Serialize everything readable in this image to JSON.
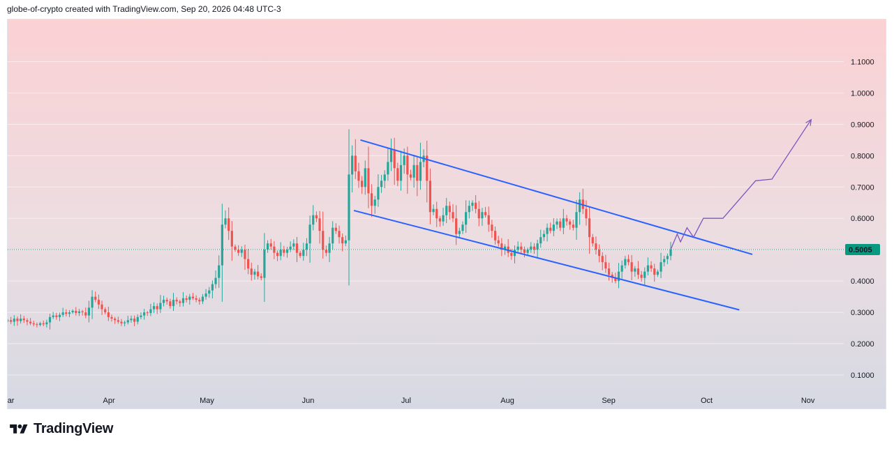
{
  "header": {
    "caption": "globe-of-crypto created with TradingView.com, Sep 20, 2026 04:48 UTC-3"
  },
  "footer": {
    "brand": "TradingView",
    "logo_icon": "tradingview-logo-icon"
  },
  "colors": {
    "up": "#26a69a",
    "down": "#ef5350",
    "channel": "#2962ff",
    "projection": "#7e57c2",
    "last_price_badge": "#089981"
  },
  "chart_data": {
    "type": "candlestick",
    "y_axis": {
      "ticks": [
        "0.1000",
        "0.2000",
        "0.3000",
        "0.4000",
        "0.5000",
        "0.6000",
        "0.7000",
        "0.8000",
        "0.9000",
        "1.0000",
        "1.1000"
      ],
      "range": [
        0.06,
        1.19
      ]
    },
    "x_axis": {
      "ticks": [
        "Mar",
        "Apr",
        "May",
        "Jun",
        "Jul",
        "Aug",
        "Sep",
        "Oct",
        "Nov"
      ]
    },
    "last_price": "0.5005",
    "closes": [
      0.275,
      0.27,
      0.28,
      0.272,
      0.28,
      0.275,
      0.27,
      0.265,
      0.262,
      0.26,
      0.265,
      0.262,
      0.268,
      0.285,
      0.29,
      0.285,
      0.292,
      0.3,
      0.295,
      0.3,
      0.305,
      0.298,
      0.303,
      0.3,
      0.29,
      0.315,
      0.35,
      0.34,
      0.325,
      0.31,
      0.3,
      0.285,
      0.28,
      0.275,
      0.27,
      0.265,
      0.268,
      0.275,
      0.28,
      0.27,
      0.285,
      0.29,
      0.3,
      0.298,
      0.31,
      0.32,
      0.31,
      0.33,
      0.34,
      0.335,
      0.32,
      0.34,
      0.335,
      0.33,
      0.345,
      0.34,
      0.35,
      0.345,
      0.34,
      0.335,
      0.35,
      0.36,
      0.37,
      0.39,
      0.41,
      0.45,
      0.58,
      0.6,
      0.56,
      0.51,
      0.5,
      0.49,
      0.5,
      0.47,
      0.44,
      0.42,
      0.43,
      0.415,
      0.41,
      0.5,
      0.52,
      0.51,
      0.49,
      0.48,
      0.5,
      0.49,
      0.5,
      0.51,
      0.52,
      0.49,
      0.48,
      0.5,
      0.52,
      0.58,
      0.61,
      0.6,
      0.56,
      0.5,
      0.49,
      0.52,
      0.57,
      0.56,
      0.54,
      0.52,
      0.53,
      0.74,
      0.8,
      0.75,
      0.72,
      0.7,
      0.76,
      0.68,
      0.64,
      0.66,
      0.7,
      0.72,
      0.74,
      0.78,
      0.82,
      0.76,
      0.72,
      0.77,
      0.8,
      0.74,
      0.73,
      0.77,
      0.72,
      0.78,
      0.8,
      0.72,
      0.62,
      0.63,
      0.6,
      0.59,
      0.61,
      0.64,
      0.62,
      0.6,
      0.55,
      0.56,
      0.58,
      0.62,
      0.64,
      0.65,
      0.63,
      0.6,
      0.62,
      0.61,
      0.58,
      0.56,
      0.53,
      0.52,
      0.5,
      0.51,
      0.49,
      0.48,
      0.5,
      0.51,
      0.5,
      0.49,
      0.5,
      0.51,
      0.5,
      0.52,
      0.54,
      0.55,
      0.57,
      0.56,
      0.58,
      0.59,
      0.57,
      0.6,
      0.59,
      0.58,
      0.57,
      0.62,
      0.66,
      0.63,
      0.6,
      0.54,
      0.52,
      0.5,
      0.48,
      0.46,
      0.44,
      0.42,
      0.41,
      0.4,
      0.43,
      0.45,
      0.47,
      0.46,
      0.43,
      0.44,
      0.42,
      0.41,
      0.43,
      0.45,
      0.44,
      0.42,
      0.43,
      0.46,
      0.47,
      0.48,
      0.5005
    ],
    "drawings": {
      "channel_upper": [
        [
          "Jun 17",
          0.85
        ],
        [
          "Oct 15",
          0.485
        ]
      ],
      "channel_lower": [
        [
          "Jun 15",
          0.625
        ],
        [
          "Oct 11",
          0.308
        ]
      ],
      "projection_path": [
        [
          0.5005,
          "Sep 20"
        ],
        [
          0.55,
          "Sep 22"
        ],
        [
          0.525,
          "Sep 23"
        ],
        [
          0.57,
          "Sep 25"
        ],
        [
          0.54,
          "Sep 27"
        ],
        [
          0.6,
          "Sep 30"
        ],
        [
          0.6,
          "Oct 6"
        ],
        [
          0.72,
          "Oct 16"
        ],
        [
          0.725,
          "Oct 21"
        ],
        [
          0.915,
          "Nov 2"
        ]
      ]
    }
  }
}
